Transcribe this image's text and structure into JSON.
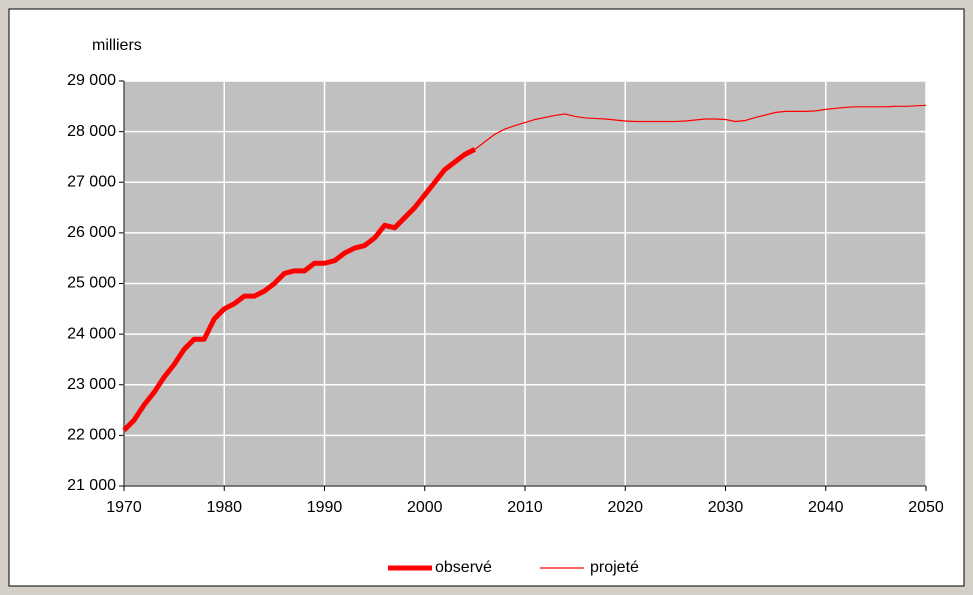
{
  "chart_data": {
    "type": "line",
    "y_label": "milliers",
    "x": [
      1970,
      1971,
      1972,
      1973,
      1974,
      1975,
      1976,
      1977,
      1978,
      1979,
      1980,
      1981,
      1982,
      1983,
      1984,
      1985,
      1986,
      1987,
      1988,
      1989,
      1990,
      1991,
      1992,
      1993,
      1994,
      1995,
      1996,
      1997,
      1998,
      1999,
      2000,
      2001,
      2002,
      2003,
      2004,
      2005,
      2006,
      2007,
      2008,
      2009,
      2010,
      2011,
      2012,
      2013,
      2014,
      2015,
      2016,
      2017,
      2018,
      2019,
      2020,
      2021,
      2022,
      2023,
      2024,
      2025,
      2026,
      2027,
      2028,
      2029,
      2030,
      2031,
      2032,
      2033,
      2034,
      2035,
      2036,
      2037,
      2038,
      2039,
      2040,
      2041,
      2042,
      2043,
      2044,
      2045,
      2046,
      2047,
      2048,
      2049,
      2050
    ],
    "series": [
      {
        "name": "observé",
        "color": "#ff0000",
        "width": 5,
        "values": [
          22100,
          22300,
          22600,
          22850,
          23150,
          23400,
          23700,
          23900,
          23900,
          24300,
          24500,
          24600,
          24750,
          24750,
          24850,
          25000,
          25200,
          25250,
          25250,
          25400,
          25400,
          25450,
          25600,
          25700,
          25750,
          25900,
          26150,
          26100,
          26300,
          26500,
          26750,
          27000,
          27250,
          27400,
          27550,
          27650,
          null,
          null,
          null,
          null,
          null,
          null,
          null,
          null,
          null,
          null,
          null,
          null,
          null,
          null,
          null,
          null,
          null,
          null,
          null,
          null,
          null,
          null,
          null,
          null,
          null,
          null,
          null,
          null,
          null,
          null,
          null,
          null,
          null,
          null,
          null,
          null,
          null,
          null,
          null,
          null,
          null,
          null,
          null,
          null,
          null
        ]
      },
      {
        "name": "projeté",
        "color": "#ff0000",
        "width": 1.2,
        "values": [
          22100,
          22300,
          22600,
          22850,
          23150,
          23400,
          23700,
          23900,
          23900,
          24300,
          24500,
          24600,
          24750,
          24750,
          24850,
          25000,
          25200,
          25250,
          25250,
          25400,
          25400,
          25450,
          25600,
          25700,
          25750,
          25900,
          26150,
          26100,
          26300,
          26500,
          26750,
          27000,
          27250,
          27400,
          27550,
          27650,
          27800,
          27950,
          28050,
          28120,
          28180,
          28240,
          28280,
          28320,
          28350,
          28300,
          28270,
          28260,
          28250,
          28230,
          28210,
          28200,
          28200,
          28200,
          28200,
          28200,
          28210,
          28230,
          28250,
          28250,
          28240,
          28200,
          28220,
          28280,
          28330,
          28380,
          28400,
          28400,
          28400,
          28410,
          28440,
          28460,
          28480,
          28490,
          28490,
          28490,
          28490,
          28500,
          28500,
          28510,
          28520
        ]
      }
    ],
    "xlim": [
      1970,
      2050
    ],
    "xticks": [
      1970,
      1980,
      1990,
      2000,
      2010,
      2020,
      2030,
      2040,
      2050
    ],
    "ylim": [
      21000,
      29000
    ],
    "yticks": [
      {
        "value": 21000,
        "label": "21 000"
      },
      {
        "value": 22000,
        "label": "22 000"
      },
      {
        "value": 23000,
        "label": "23 000"
      },
      {
        "value": 24000,
        "label": "24 000"
      },
      {
        "value": 25000,
        "label": "25 000"
      },
      {
        "value": 26000,
        "label": "26 000"
      },
      {
        "value": 27000,
        "label": "27 000"
      },
      {
        "value": 28000,
        "label": "28 000"
      },
      {
        "value": 29000,
        "label": "29 000"
      }
    ],
    "grid": true,
    "legend": "bottom"
  }
}
